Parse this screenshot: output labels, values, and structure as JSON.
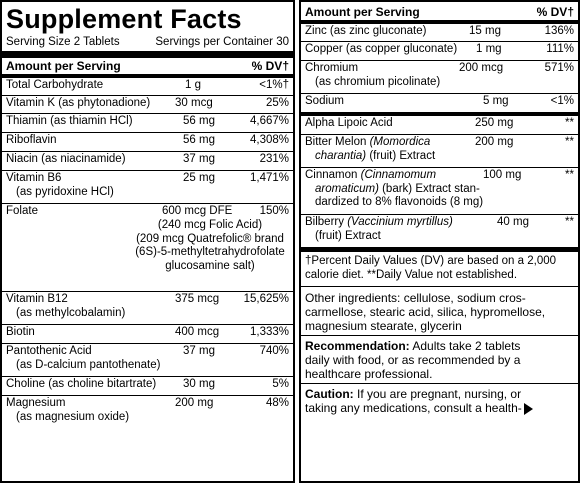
{
  "title": "Supplement Facts",
  "serving_size": "Serving Size 2 Tablets",
  "servings_per_container": "Servings per Container 30",
  "header": {
    "amount": "Amount per Serving",
    "dv": "% DV†"
  },
  "left_rows": [
    {
      "name": "Total Carbohydrate",
      "amount": "1 g",
      "dv": "<1%†"
    },
    {
      "name": "Vitamin K (as phytonadione)",
      "amount": "30 mcg",
      "dv": "25%"
    },
    {
      "name": "Thiamin (as thiamin HCl)",
      "amount": "56 mg",
      "dv": "4,667%"
    },
    {
      "name": "Riboflavin",
      "amount": "56 mg",
      "dv": "4,308%"
    },
    {
      "name": "Niacin (as niacinamide)",
      "amount": "37 mg",
      "dv": "231%"
    },
    {
      "name": "Vitamin B6",
      "sub": "(as pyridoxine HCl)",
      "amount": "25 mg",
      "dv": "1,471%"
    }
  ],
  "folate": {
    "name": "Folate",
    "amount": "600 mcg DFE",
    "dv": "150%",
    "lines": [
      "(240 mcg Folic Acid)",
      "(209 mcg Quatrefolic® brand",
      "(6S)-5-methyltetrahydrofolate",
      "glucosamine salt)"
    ]
  },
  "left_rows2": [
    {
      "name": "Vitamin B12",
      "sub": "(as methylcobalamin)",
      "amount": "375 mcg",
      "dv": "15,625%"
    },
    {
      "name": "Biotin",
      "amount": "400 mcg",
      "dv": "1,333%"
    },
    {
      "name": "Pantothenic Acid",
      "sub": "(as D-calcium pantothenate)",
      "amount": "37 mg",
      "dv": "740%"
    },
    {
      "name": "Choline (as choline bitartrate)",
      "amount": "30 mg",
      "dv": "5%"
    },
    {
      "name": "Magnesium",
      "sub": "(as magnesium oxide)",
      "amount": "200 mg",
      "dv": "48%"
    }
  ],
  "right_header": {
    "amount": "Amount per Serving",
    "dv": "% DV†"
  },
  "right_rows": [
    {
      "name": "Zinc (as zinc gluconate)",
      "amount": "15 mg",
      "dv": "136%"
    },
    {
      "name": "Copper (as copper gluconate)",
      "amount": "1 mg",
      "dv": "111%"
    },
    {
      "name": "Chromium",
      "sub": "(as chromium picolinate)",
      "amount": "200 mcg",
      "dv": "571%"
    },
    {
      "name": "Sodium",
      "amount": "5 mg",
      "dv": "<1%"
    }
  ],
  "botanicals": [
    {
      "name": "Alpha Lipoic Acid",
      "amount": "250 mg",
      "dv": "**"
    },
    {
      "name_plain": "Bitter Melon ",
      "name_italic": "(Momordica",
      "line2_italic": "charantia)",
      "line2_plain": " (fruit) Extract",
      "amount": "200 mg",
      "dv": "**"
    },
    {
      "name_plain": "Cinnamon ",
      "name_italic": "(Cinnamomum",
      "line2_italic": "aromaticum)",
      "line2_plain": " (bark) Extract stan-",
      "line3": "dardized to 8% flavonoids (8 mg)",
      "amount": "100 mg",
      "dv": "**"
    },
    {
      "name_plain": "Bilberry ",
      "name_italic": "(Vaccinium myrtillus)",
      "line2_plain": "(fruit) Extract",
      "amount": "40 mg",
      "dv": "**"
    }
  ],
  "footnote": [
    "†Percent Daily Values (DV) are based on a 2,000",
    "calorie diet. **Daily Value not established."
  ],
  "other_ingredients": [
    "Other ingredients: cellulose, sodium cros-",
    "carmellose, stearic acid, silica, hypromellose,",
    "magnesium stearate, glycerin"
  ],
  "recommendation": {
    "label": "Recommendation:",
    "lines": [
      " Adults take 2 tablets",
      "daily with food, or as recommended by a",
      "healthcare professional."
    ]
  },
  "caution": {
    "label": "Caution:",
    "lines": [
      " If you are pregnant, nursing, or",
      "taking any medications, consult a health-"
    ]
  }
}
